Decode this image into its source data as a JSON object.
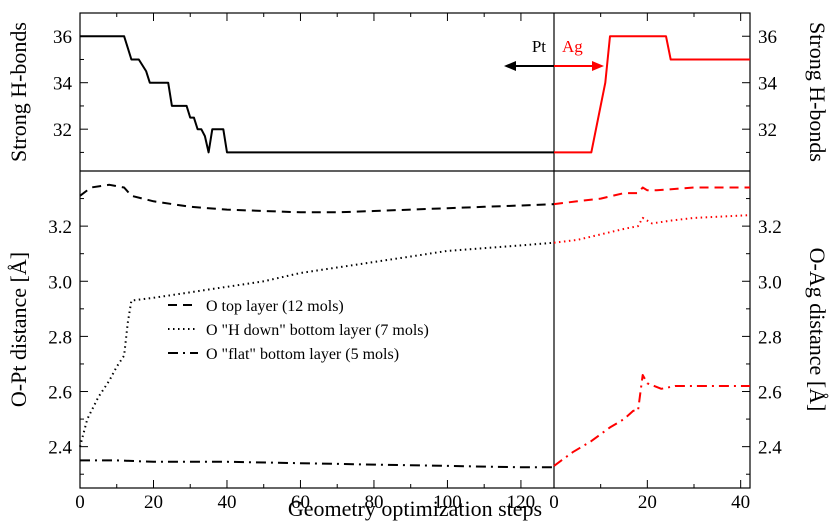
{
  "chart_data": {
    "type": "line",
    "xlabel": "Geometry optimization steps",
    "colors": {
      "pt": "#000000",
      "ag": "#ff0000"
    },
    "top_panel": {
      "ylabel_left": "Strong H-bonds",
      "ylabel_right": "Strong H-bonds",
      "ylim": [
        30.2,
        37.0
      ],
      "yticks": [
        32,
        34,
        36
      ],
      "pt_series": {
        "name": "Pt",
        "x": [
          0,
          12,
          13,
          14,
          16,
          18,
          19,
          20,
          24,
          25,
          29,
          30,
          31,
          32,
          33,
          34,
          35,
          36,
          37,
          38,
          39,
          40,
          129
        ],
        "y": [
          36,
          36,
          35.5,
          35,
          35,
          34.5,
          34,
          34,
          34,
          33,
          33,
          32.5,
          32.5,
          32,
          32,
          31.7,
          31,
          32,
          32,
          32,
          32,
          31,
          31
        ]
      },
      "ag_series": {
        "name": "Ag",
        "x": [
          0,
          8,
          11,
          12,
          14,
          24,
          25,
          42
        ],
        "y": [
          31,
          31,
          34,
          36,
          36,
          36,
          35,
          35
        ]
      },
      "arrow_labels": {
        "left": "Pt",
        "right": "Ag"
      }
    },
    "bottom_panel": {
      "ylabel_left": "O-Pt distance [Å]",
      "ylabel_right": "O-Ag distance [Å]",
      "ylim": [
        2.25,
        3.4
      ],
      "yticks": [
        2.4,
        2.6,
        2.8,
        3.0,
        3.2
      ],
      "ytick_labels": [
        "2.4",
        "2.6",
        "2.8",
        "3.0",
        "3.2"
      ],
      "legend": [
        "O top layer (12 mols)",
        "O \"H down\" bottom layer (7 mols)",
        "O \"flat\" bottom layer (5 mols)"
      ],
      "pt_series": [
        {
          "style": "dashed",
          "x": [
            0,
            3,
            8,
            12,
            14,
            20,
            30,
            40,
            50,
            60,
            70,
            80,
            90,
            100,
            110,
            120,
            129
          ],
          "y": [
            3.31,
            3.34,
            3.35,
            3.34,
            3.31,
            3.29,
            3.27,
            3.26,
            3.255,
            3.25,
            3.25,
            3.255,
            3.26,
            3.265,
            3.27,
            3.275,
            3.28
          ]
        },
        {
          "style": "dotted",
          "x": [
            0,
            2,
            5,
            8,
            10,
            12,
            13,
            14,
            20,
            30,
            40,
            50,
            60,
            70,
            80,
            90,
            100,
            110,
            120,
            129
          ],
          "y": [
            2.4,
            2.5,
            2.58,
            2.64,
            2.69,
            2.73,
            2.85,
            2.93,
            2.94,
            2.96,
            2.98,
            3.0,
            3.03,
            3.05,
            3.07,
            3.09,
            3.11,
            3.12,
            3.13,
            3.14
          ]
        },
        {
          "style": "dashdot",
          "x": [
            0,
            10,
            20,
            40,
            60,
            80,
            100,
            120,
            129
          ],
          "y": [
            2.35,
            2.35,
            2.345,
            2.345,
            2.34,
            2.335,
            2.33,
            2.325,
            2.325
          ]
        }
      ],
      "ag_series": [
        {
          "style": "dashed",
          "x": [
            0,
            5,
            10,
            15,
            18,
            19,
            20,
            22,
            30,
            42
          ],
          "y": [
            3.28,
            3.29,
            3.3,
            3.32,
            3.32,
            3.34,
            3.33,
            3.33,
            3.34,
            3.34
          ]
        },
        {
          "style": "dotted",
          "x": [
            0,
            5,
            10,
            15,
            18,
            19,
            21,
            25,
            30,
            42
          ],
          "y": [
            3.14,
            3.15,
            3.17,
            3.19,
            3.2,
            3.23,
            3.21,
            3.22,
            3.23,
            3.24
          ]
        },
        {
          "style": "dashdot",
          "x": [
            0,
            4,
            8,
            12,
            15,
            17,
            18,
            19,
            20,
            23,
            26,
            30,
            36,
            42
          ],
          "y": [
            2.33,
            2.38,
            2.42,
            2.47,
            2.5,
            2.53,
            2.53,
            2.66,
            2.63,
            2.61,
            2.62,
            2.62,
            2.62,
            2.62
          ]
        }
      ]
    },
    "pt_xlim": [
      0,
      129
    ],
    "pt_xticks": [
      0,
      20,
      40,
      60,
      80,
      100,
      120
    ],
    "ag_xlim": [
      0,
      42
    ],
    "ag_xticks": [
      0,
      20,
      40
    ]
  }
}
